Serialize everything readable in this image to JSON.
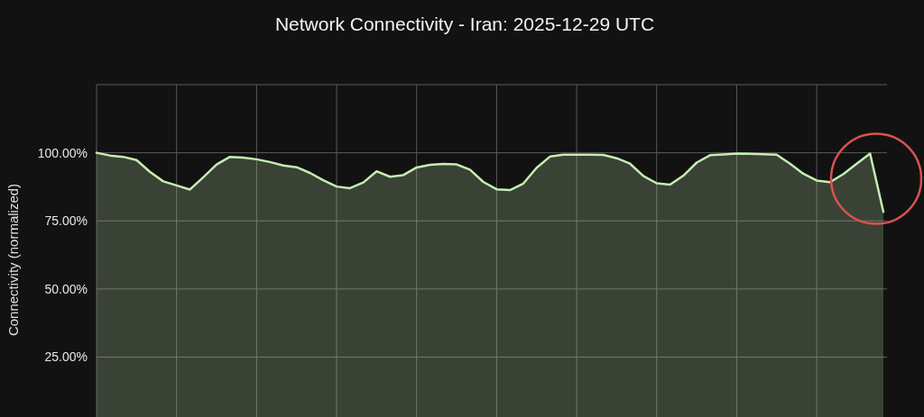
{
  "chart_data": {
    "type": "area",
    "title": "Network Connectivity - Iran: 2025-12-29 UTC",
    "ylabel": "Connectivity (normalized)",
    "categories": [
      null,
      null,
      null,
      null,
      null,
      null,
      null,
      null,
      null,
      null,
      null,
      null,
      null,
      null,
      null,
      null,
      null,
      null,
      null,
      null,
      null,
      null,
      null,
      null,
      null,
      null,
      null,
      null,
      null,
      null,
      null,
      null,
      null,
      null,
      null,
      null,
      null,
      null,
      null,
      null,
      null,
      null,
      null,
      null,
      null,
      null,
      null,
      null,
      null,
      null,
      null,
      null,
      null,
      null,
      null,
      null,
      null,
      null,
      null,
      null
    ],
    "series": [
      {
        "color": "#c4eeb0",
        "values": [
          100,
          99,
          98.5,
          97.3,
          93,
          89.5,
          88,
          86.5,
          91,
          95.7,
          98.5,
          98.2,
          97.6,
          96.6,
          95.3,
          94.7,
          92.6,
          89.9,
          87.6,
          87,
          89.1,
          93.2,
          91.2,
          91.8,
          94.6,
          95.6,
          95.9,
          95.7,
          93.8,
          89.3,
          86.6,
          86.3,
          88.7,
          94.5,
          98.6,
          99.3,
          99.3,
          99.3,
          99.2,
          98,
          96,
          91.5,
          88.8,
          88.3,
          91.6,
          96.4,
          99.1,
          99.4,
          99.7,
          99.6,
          99.5,
          99.3,
          96,
          92.3,
          89.8,
          89.2,
          92.2,
          96,
          99.7,
          78.3
        ]
      }
    ],
    "ylim": [
      3,
      125
    ],
    "yticks": [
      {
        "value": 25,
        "label": "25.00%"
      },
      {
        "value": 50,
        "label": "50.00%"
      },
      {
        "value": 75,
        "label": "75.00%"
      },
      {
        "value": 100,
        "label": "100.00%"
      },
      {
        "value": 125,
        "label": null
      }
    ],
    "grid": true
  }
}
